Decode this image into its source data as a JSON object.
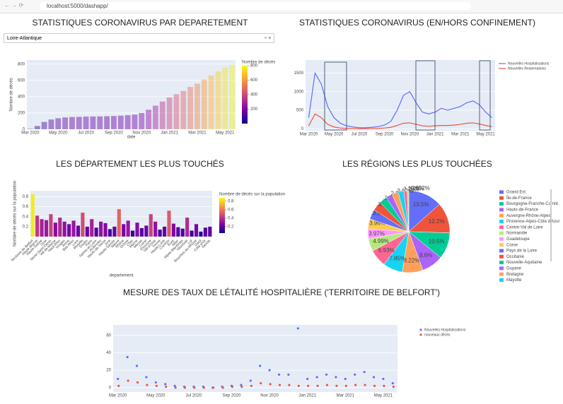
{
  "browser": {
    "url": "localhost:5000/dashapp/"
  },
  "dropdown": {
    "value": "Loire-Atlantique"
  },
  "chart_data": [
    {
      "type": "bar",
      "title": "STATISTIQUES CORONAVIRUS PAR DEPARETEMENT",
      "x_label": "date",
      "y_label": "Nombre de décès",
      "categories": [
        "Mar 2020",
        null,
        null,
        null,
        "May 2020",
        null,
        null,
        null,
        "Jul 2020",
        null,
        null,
        null,
        "Sep 2020",
        null,
        null,
        null,
        "Nov 2020",
        null,
        null,
        null,
        "Jan 2021",
        null,
        null,
        null,
        "Mar 2021",
        null,
        null,
        null,
        "May 2021",
        null
      ],
      "values": [
        5,
        40,
        90,
        120,
        135,
        145,
        150,
        152,
        155,
        157,
        158,
        160,
        163,
        167,
        172,
        180,
        200,
        240,
        290,
        340,
        390,
        430,
        470,
        520,
        560,
        610,
        660,
        710,
        760,
        790
      ],
      "ylim": [
        0,
        850
      ],
      "yticks": [
        0,
        200,
        400,
        600,
        800
      ],
      "colorscale": "plasma",
      "opacity": 0.45,
      "colorbar": {
        "title": "Nombre de décès",
        "range": [
          0,
          800
        ],
        "ticks": [
          200,
          400,
          600,
          800
        ]
      },
      "grid": true
    },
    {
      "type": "line",
      "title": "STATISTIQUES CORONAVIRUS (EN/HORS CONFINEMENT)",
      "categories": [
        "Mar 2020",
        null,
        null,
        null,
        "May 2020",
        null,
        null,
        null,
        "Jul 2020",
        null,
        null,
        null,
        "Sep 2020",
        null,
        null,
        null,
        "Nov 2020",
        null,
        null,
        null,
        "Jan 2021",
        null,
        null,
        null,
        "Mar 2021",
        null,
        null,
        null,
        "May 2021",
        null
      ],
      "series": [
        {
          "name": "Nouvelles Hospitalisations",
          "color": "#636efa",
          "values": [
            300,
            1500,
            1200,
            600,
            300,
            150,
            80,
            50,
            30,
            30,
            40,
            60,
            100,
            200,
            500,
            900,
            1000,
            700,
            450,
            400,
            450,
            550,
            500,
            550,
            600,
            700,
            750,
            650,
            450,
            300
          ]
        },
        {
          "name": "Nouvelles Reanimations",
          "color": "#ef553b",
          "values": [
            80,
            400,
            300,
            120,
            50,
            20,
            10,
            8,
            5,
            5,
            8,
            12,
            20,
            40,
            90,
            150,
            160,
            120,
            80,
            70,
            80,
            90,
            90,
            100,
            120,
            150,
            160,
            130,
            90,
            60
          ]
        }
      ],
      "ylim": [
        -50,
        1850
      ],
      "yticks": [
        0,
        500,
        1000,
        1500
      ],
      "grid": true,
      "legend": "right"
    },
    {
      "type": "bar",
      "title": "LES DÉPARTEMENT LES PLUS TOUCHÉS",
      "x_label": "departement",
      "y_label": "Nombre de décès sur la population",
      "categories": [
        "Territoire de Belfort",
        "Haute-Marne",
        "Haute-Saône",
        "Oise",
        "Seine-Saint-Denis",
        "Val-de-Marne",
        "Haut-Rhin",
        "Vosges",
        "Aisne",
        "Bas-Rhin",
        "Loire",
        "Moselle",
        "Doubs",
        "Paris",
        "Saône-et-Loire",
        "Ardennes",
        "Hauts-de-Seine",
        "Jura",
        "Haute-Savoie",
        "Nièvre",
        "Rhône",
        "Drôme",
        "Cher",
        "Marne",
        "Meuse",
        "Loiret",
        "Essonne",
        "Val-d'Oise",
        "Yonne",
        "Haute-Loire",
        "Corrèze",
        "Eure",
        "Allier",
        "Alpes-Maritimes",
        "Vaucluse",
        "Lot",
        "Bouches-du-Rhône",
        "Gard",
        "Côte-d'Or",
        "Savoie"
      ],
      "values": [
        0.85,
        0.42,
        0.35,
        0.33,
        0.45,
        0.28,
        0.38,
        0.3,
        0.25,
        0.32,
        0.22,
        0.48,
        0.2,
        0.35,
        0.18,
        0.3,
        0.27,
        0.15,
        0.2,
        0.55,
        0.25,
        0.32,
        0.12,
        0.28,
        0.17,
        0.22,
        0.45,
        0.3,
        0.14,
        0.2,
        0.52,
        0.26,
        0.19,
        0.16,
        0.38,
        0.12,
        0.25,
        0.1,
        0.18,
        0.2
      ],
      "ylim": [
        0,
        0.92
      ],
      "yticks": [
        0.2,
        0.4,
        0.6,
        0.8
      ],
      "colorscale": "plasma",
      "opacity": 1,
      "colorbar": {
        "title": "Nombre de décès sur la population",
        "range": [
          0.05,
          0.88
        ],
        "ticks": [
          0.2,
          0.4,
          0.6,
          0.8
        ]
      },
      "grid": true
    },
    {
      "type": "pie",
      "title": "LES RÉGIONS LES PLUS TOUCHÉES",
      "categories": [
        "Grand Est",
        "Île-de-France",
        "Bourgogne-Franche-Comté",
        "Hauts-de-France",
        "Auvergne-Rhône-Alpes",
        "Provence-Alpes-Côte d'Azur",
        "Centre-Val de Loire",
        "Normandie",
        "Guadeloupe",
        "Corse",
        "Pays de la Loire",
        "Occitanie",
        "Nouvelle-Aquitaine",
        "Guyane",
        "Bretagne",
        "Mayotte",
        null,
        null
      ],
      "values": [
        13.5,
        12.2,
        10.5,
        8.6,
        8.22,
        7.85,
        6.93,
        4.99,
        3.97,
        3.96,
        3.91,
        3.77,
        3.12,
        2.58,
        2.52,
        2.28,
        1.29,
        0.692
      ],
      "value_labels": [
        "13.5%",
        "12.2%",
        "10.5%",
        "8.6%",
        "8.22%",
        "7.85%",
        "6.93%",
        "4.99%",
        "3.97%",
        "3.96%",
        "3.91%",
        "3.77%",
        "3.12%",
        "2.58%",
        "2.52%",
        "2.28%",
        "1.29%",
        "0.692%"
      ],
      "colors": [
        "#636efa",
        "#ef553b",
        "#00cc96",
        "#ab63fa",
        "#ffa15a",
        "#19d3f3",
        "#ff6692",
        "#b6e880",
        "#ff97ff",
        "#fecb52",
        "#636efa",
        "#ef553b",
        "#00cc96",
        "#ab63fa",
        "#ffa15a",
        "#19d3f3",
        "#ff6692",
        "#b6e880"
      ]
    },
    {
      "type": "scatter",
      "title": "MESURE DES TAUX DE LÉTALITÉ HOSPITALIÈRE ('TERRITOIRE DE BELFORT')",
      "categories": [
        "Mar 2020",
        null,
        null,
        null,
        "May 2020",
        null,
        null,
        null,
        "Jul 2020",
        null,
        null,
        null,
        "Sep 2020",
        null,
        null,
        null,
        "Nov 2020",
        null,
        null,
        null,
        "Jan 2021",
        null,
        null,
        null,
        "Mar 2021",
        null,
        null,
        null,
        "May 2021",
        null
      ],
      "series": [
        {
          "name": "Nouvelles Hospitalisations",
          "color": "#636efa",
          "values": [
            10,
            35,
            25,
            12,
            6,
            4,
            2,
            1,
            1,
            1,
            0,
            1,
            2,
            3,
            8,
            25,
            20,
            15,
            15,
            68,
            10,
            12,
            15,
            12,
            10,
            15,
            18,
            12,
            10,
            5
          ]
        },
        {
          "name": "nouveaux décès",
          "color": "#ef553b",
          "values": [
            2,
            8,
            6,
            3,
            2,
            1,
            0,
            0,
            0,
            0,
            0,
            0,
            1,
            1,
            2,
            5,
            4,
            3,
            3,
            2,
            2,
            2,
            3,
            2,
            2,
            3,
            3,
            2,
            2,
            1
          ]
        }
      ],
      "ylim": [
        -5,
        72
      ],
      "yticks": [
        0,
        20,
        40,
        60
      ],
      "grid": true,
      "legend": "right"
    }
  ]
}
